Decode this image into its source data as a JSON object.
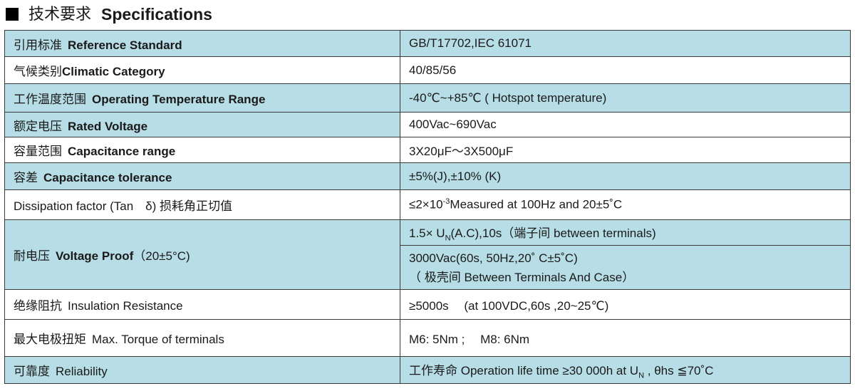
{
  "title": {
    "zh": "技术要求",
    "en": "Specifications"
  },
  "rows": [
    {
      "zh": "引用标准",
      "en": "Reference Standard",
      "value": "GB/T17702,IEC 61071"
    },
    {
      "zh": "气候类别",
      "en": "Climatic Category",
      "value": "40/85/56"
    },
    {
      "zh": "工作温度范围",
      "en": "Operating Temperature Range",
      "value": "-40℃~+85℃ ( Hotspot temperature)"
    },
    {
      "zh": "额定电压",
      "en": "Rated Voltage",
      "value": "400Vac~690Vac"
    },
    {
      "zh": "容量范围",
      "en": "Capacitance range",
      "value": "3X20μF～3X500μF"
    },
    {
      "zh": "容差",
      "en": "Capacitance tolerance",
      "value": "±5%(J),±10% (K)"
    },
    {
      "label": "Dissipation factor (Tan　δ) 损耗角正切值",
      "value_pre": "≤2×10",
      "value_sup": "-3",
      "value_post": "Measured at 100Hz and 20±5˚C"
    },
    {
      "zh": "耐电压",
      "en": "Voltage Proof",
      "suffix": "（20±5°C)",
      "value1_pre": "1.5× U",
      "value1_sub": "N",
      "value1_post": "(A.C),10s（端子间 between terminals)",
      "value2_line1": "3000Vac(60s, 50Hz,20˚ C±5˚C)",
      "value2_line2": "（ 极壳间 Between Terminals And Case）"
    },
    {
      "zh": "绝缘阻抗",
      "en": "Insulation Resistance",
      "value": "≥5000s　 (at 100VDC,60s ,20~25℃)"
    },
    {
      "zh": "最大电极扭矩",
      "en": "Max. Torque of terminals",
      "value": "M6: 5Nm ;　 M8: 6Nm"
    },
    {
      "zh": "可靠度",
      "en": "Reliability",
      "value_pre": "工作寿命 Operation life time ≥30 000h at U",
      "value_sub": "N",
      "value_post": " , θhs  ≦70˚C"
    }
  ]
}
